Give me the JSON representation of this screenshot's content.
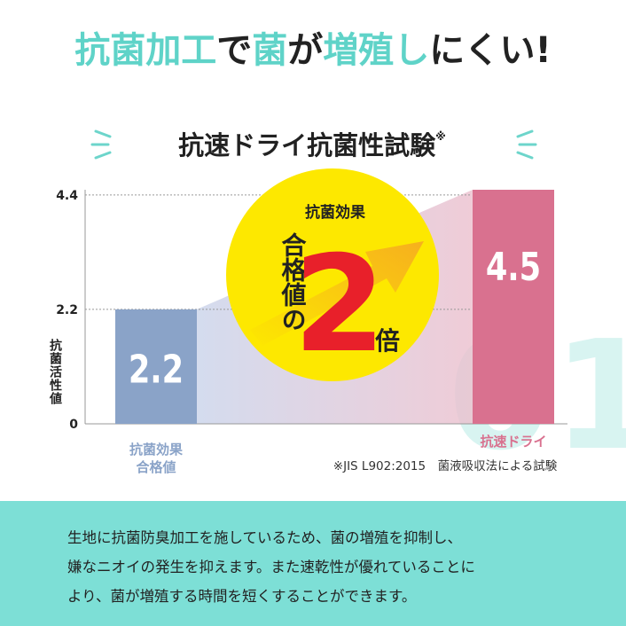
{
  "watermark": "01",
  "chart_data": {
    "type": "bar",
    "title_parts": [
      {
        "text": "抗菌加工",
        "accent": true
      },
      {
        "text": "で",
        "accent": false
      },
      {
        "text": "菌",
        "accent": true
      },
      {
        "text": "が",
        "accent": false
      },
      {
        "text": "増殖し",
        "accent": true
      },
      {
        "text": "にくい!",
        "accent": false
      }
    ],
    "accent_color": "#5fd3c8",
    "subtitle": "抗速ドライ抗菌性試験",
    "subtitle_note_mark": "※",
    "y_label": "抗菌活性値",
    "categories": [
      "抗菌効果\n合格値",
      "抗速ドライ"
    ],
    "values": [
      2.2,
      4.5
    ],
    "colors": [
      "#8aa3c8",
      "#d9718f"
    ],
    "ylim": [
      0,
      4.5
    ],
    "yticks": [
      0,
      2.2,
      4.4
    ],
    "grid": true,
    "badge": {
      "label": "抗菌効果",
      "vertical": "合格値の",
      "number": 2,
      "unit": "倍"
    },
    "footnote": "※JIS L902:2015　菌液吸収法による試験",
    "description": [
      "生地に抗菌防臭加工を施しているため、菌の増殖を抑制し、",
      "嫌なニオイの発生を抑えます。また速乾性が優れていることに",
      "より、菌が増殖する時間を短くすることができます。"
    ]
  }
}
